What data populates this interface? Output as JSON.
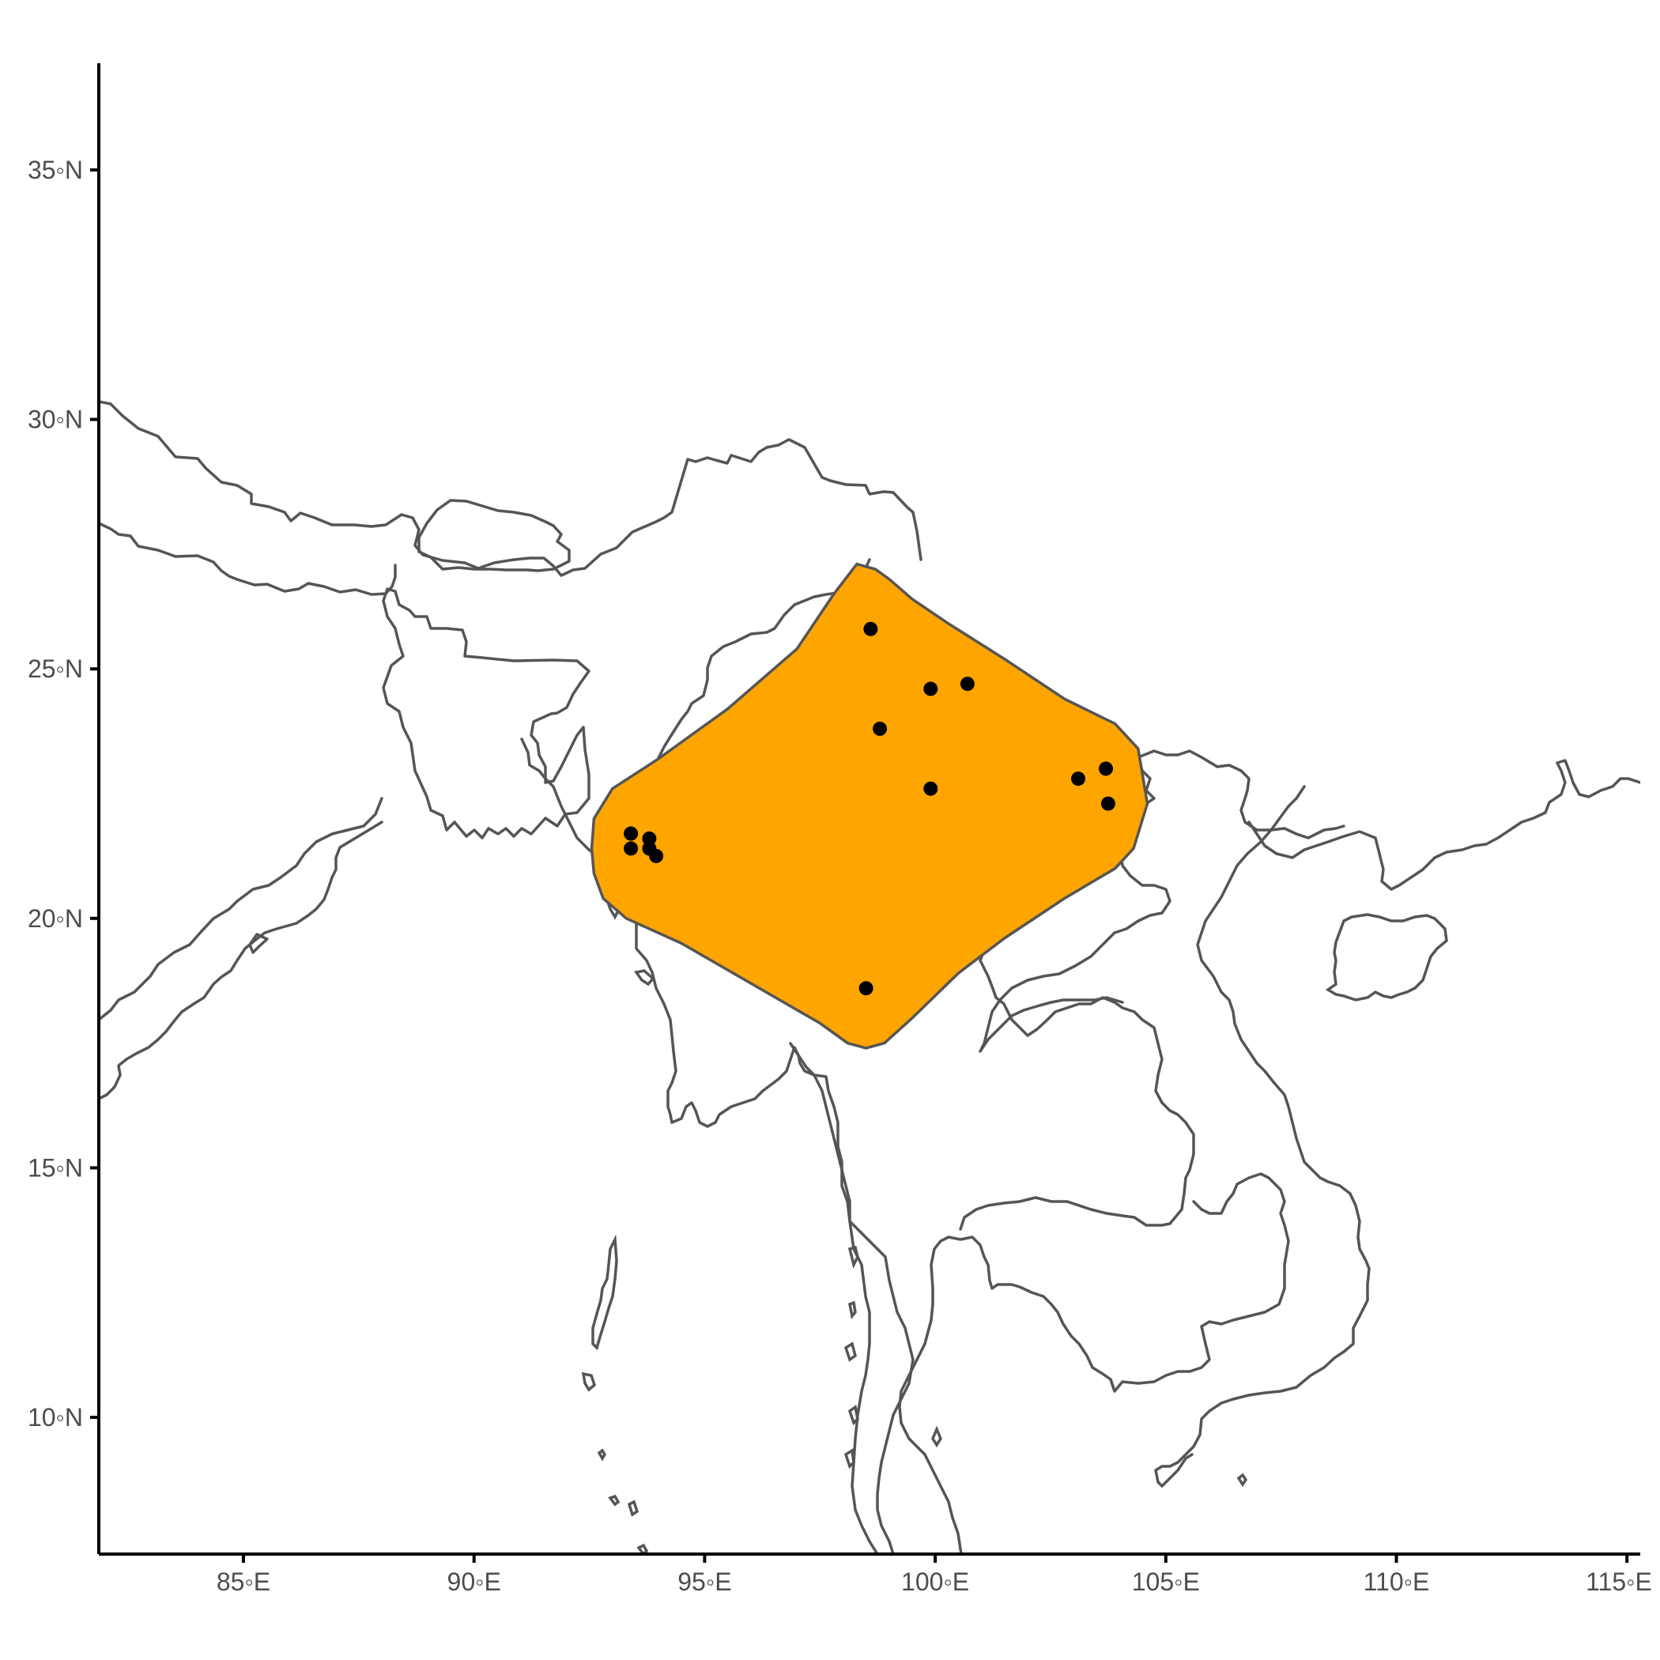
{
  "chart_data": {
    "type": "scatter",
    "title": "",
    "xlabel": "",
    "ylabel": "",
    "xlim": [
      81.8,
      115.3
    ],
    "ylim": [
      7.1,
      37.1
    ],
    "x_ticks": [
      {
        "value": 85,
        "label": "85◦E"
      },
      {
        "value": 90,
        "label": "90◦E"
      },
      {
        "value": 95,
        "label": "95◦E"
      },
      {
        "value": 100,
        "label": "100◦E"
      },
      {
        "value": 105,
        "label": "105◦E"
      },
      {
        "value": 110,
        "label": "110◦E"
      },
      {
        "value": 115,
        "label": "115◦E"
      }
    ],
    "y_ticks": [
      {
        "value": 10,
        "label": "10◦N"
      },
      {
        "value": 15,
        "label": "15◦N"
      },
      {
        "value": 20,
        "label": "20◦N"
      },
      {
        "value": 25,
        "label": "25◦N"
      },
      {
        "value": 30,
        "label": "30◦N"
      },
      {
        "value": 35,
        "label": "35◦N"
      }
    ],
    "grid": false,
    "basemap": "country borders and coastlines of South and Southeast Asia",
    "range_polygon_color": "#FFA500",
    "range_polygon": [
      [
        98.3,
        27.1
      ],
      [
        98.7,
        27.0
      ],
      [
        99.0,
        26.8
      ],
      [
        99.5,
        26.4
      ],
      [
        100.3,
        25.9
      ],
      [
        101.5,
        25.2
      ],
      [
        102.8,
        24.4
      ],
      [
        103.9,
        23.9
      ],
      [
        104.4,
        23.4
      ],
      [
        104.6,
        22.3
      ],
      [
        104.3,
        21.4
      ],
      [
        103.9,
        21.0
      ],
      [
        102.8,
        20.4
      ],
      [
        101.5,
        19.6
      ],
      [
        100.5,
        18.9
      ],
      [
        99.5,
        18.0
      ],
      [
        98.9,
        17.5
      ],
      [
        98.5,
        17.4
      ],
      [
        98.1,
        17.5
      ],
      [
        97.5,
        17.9
      ],
      [
        96.0,
        18.7
      ],
      [
        94.5,
        19.5
      ],
      [
        93.3,
        20.0
      ],
      [
        92.8,
        20.4
      ],
      [
        92.6,
        20.9
      ],
      [
        92.55,
        21.4
      ],
      [
        92.6,
        22.0
      ],
      [
        93.0,
        22.6
      ],
      [
        94.0,
        23.2
      ],
      [
        95.5,
        24.2
      ],
      [
        97.0,
        25.4
      ],
      [
        97.8,
        26.5
      ]
    ],
    "series": [
      {
        "color": "#000000",
        "points": [
          {
            "x": 98.6,
            "y": 25.8
          },
          {
            "x": 99.9,
            "y": 24.6
          },
          {
            "x": 100.7,
            "y": 24.7
          },
          {
            "x": 98.8,
            "y": 23.8
          },
          {
            "x": 99.9,
            "y": 22.6
          },
          {
            "x": 103.1,
            "y": 22.8
          },
          {
            "x": 103.7,
            "y": 23.0
          },
          {
            "x": 103.75,
            "y": 22.3
          },
          {
            "x": 93.4,
            "y": 21.7
          },
          {
            "x": 93.4,
            "y": 21.4
          },
          {
            "x": 93.8,
            "y": 21.6
          },
          {
            "x": 93.8,
            "y": 21.4
          },
          {
            "x": 93.95,
            "y": 21.25
          },
          {
            "x": 98.5,
            "y": 18.6
          }
        ]
      }
    ]
  }
}
